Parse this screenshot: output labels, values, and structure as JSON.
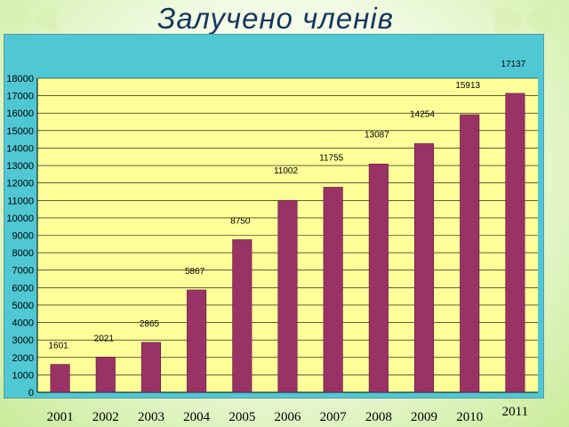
{
  "slide": {
    "title": "Залучено членів"
  },
  "chart_data": {
    "type": "bar",
    "title": "Залучено членів",
    "xlabel": "",
    "ylabel": "",
    "categories": [
      "2001",
      "2002",
      "2003",
      "2004",
      "2005",
      "2006",
      "2007",
      "2008",
      "2009",
      "2010",
      "2011"
    ],
    "values": [
      1601,
      2021,
      2865,
      5867,
      8750,
      11002,
      11755,
      13087,
      14254,
      15913,
      17137
    ],
    "ylim": [
      0,
      18000
    ],
    "ytick_step": 1000,
    "grid": true,
    "legend": "none",
    "colors": {
      "bar": "#993366",
      "plot_area": "#ffff99",
      "chart_area": "#4fc8d4",
      "gridline": "#000000"
    }
  }
}
